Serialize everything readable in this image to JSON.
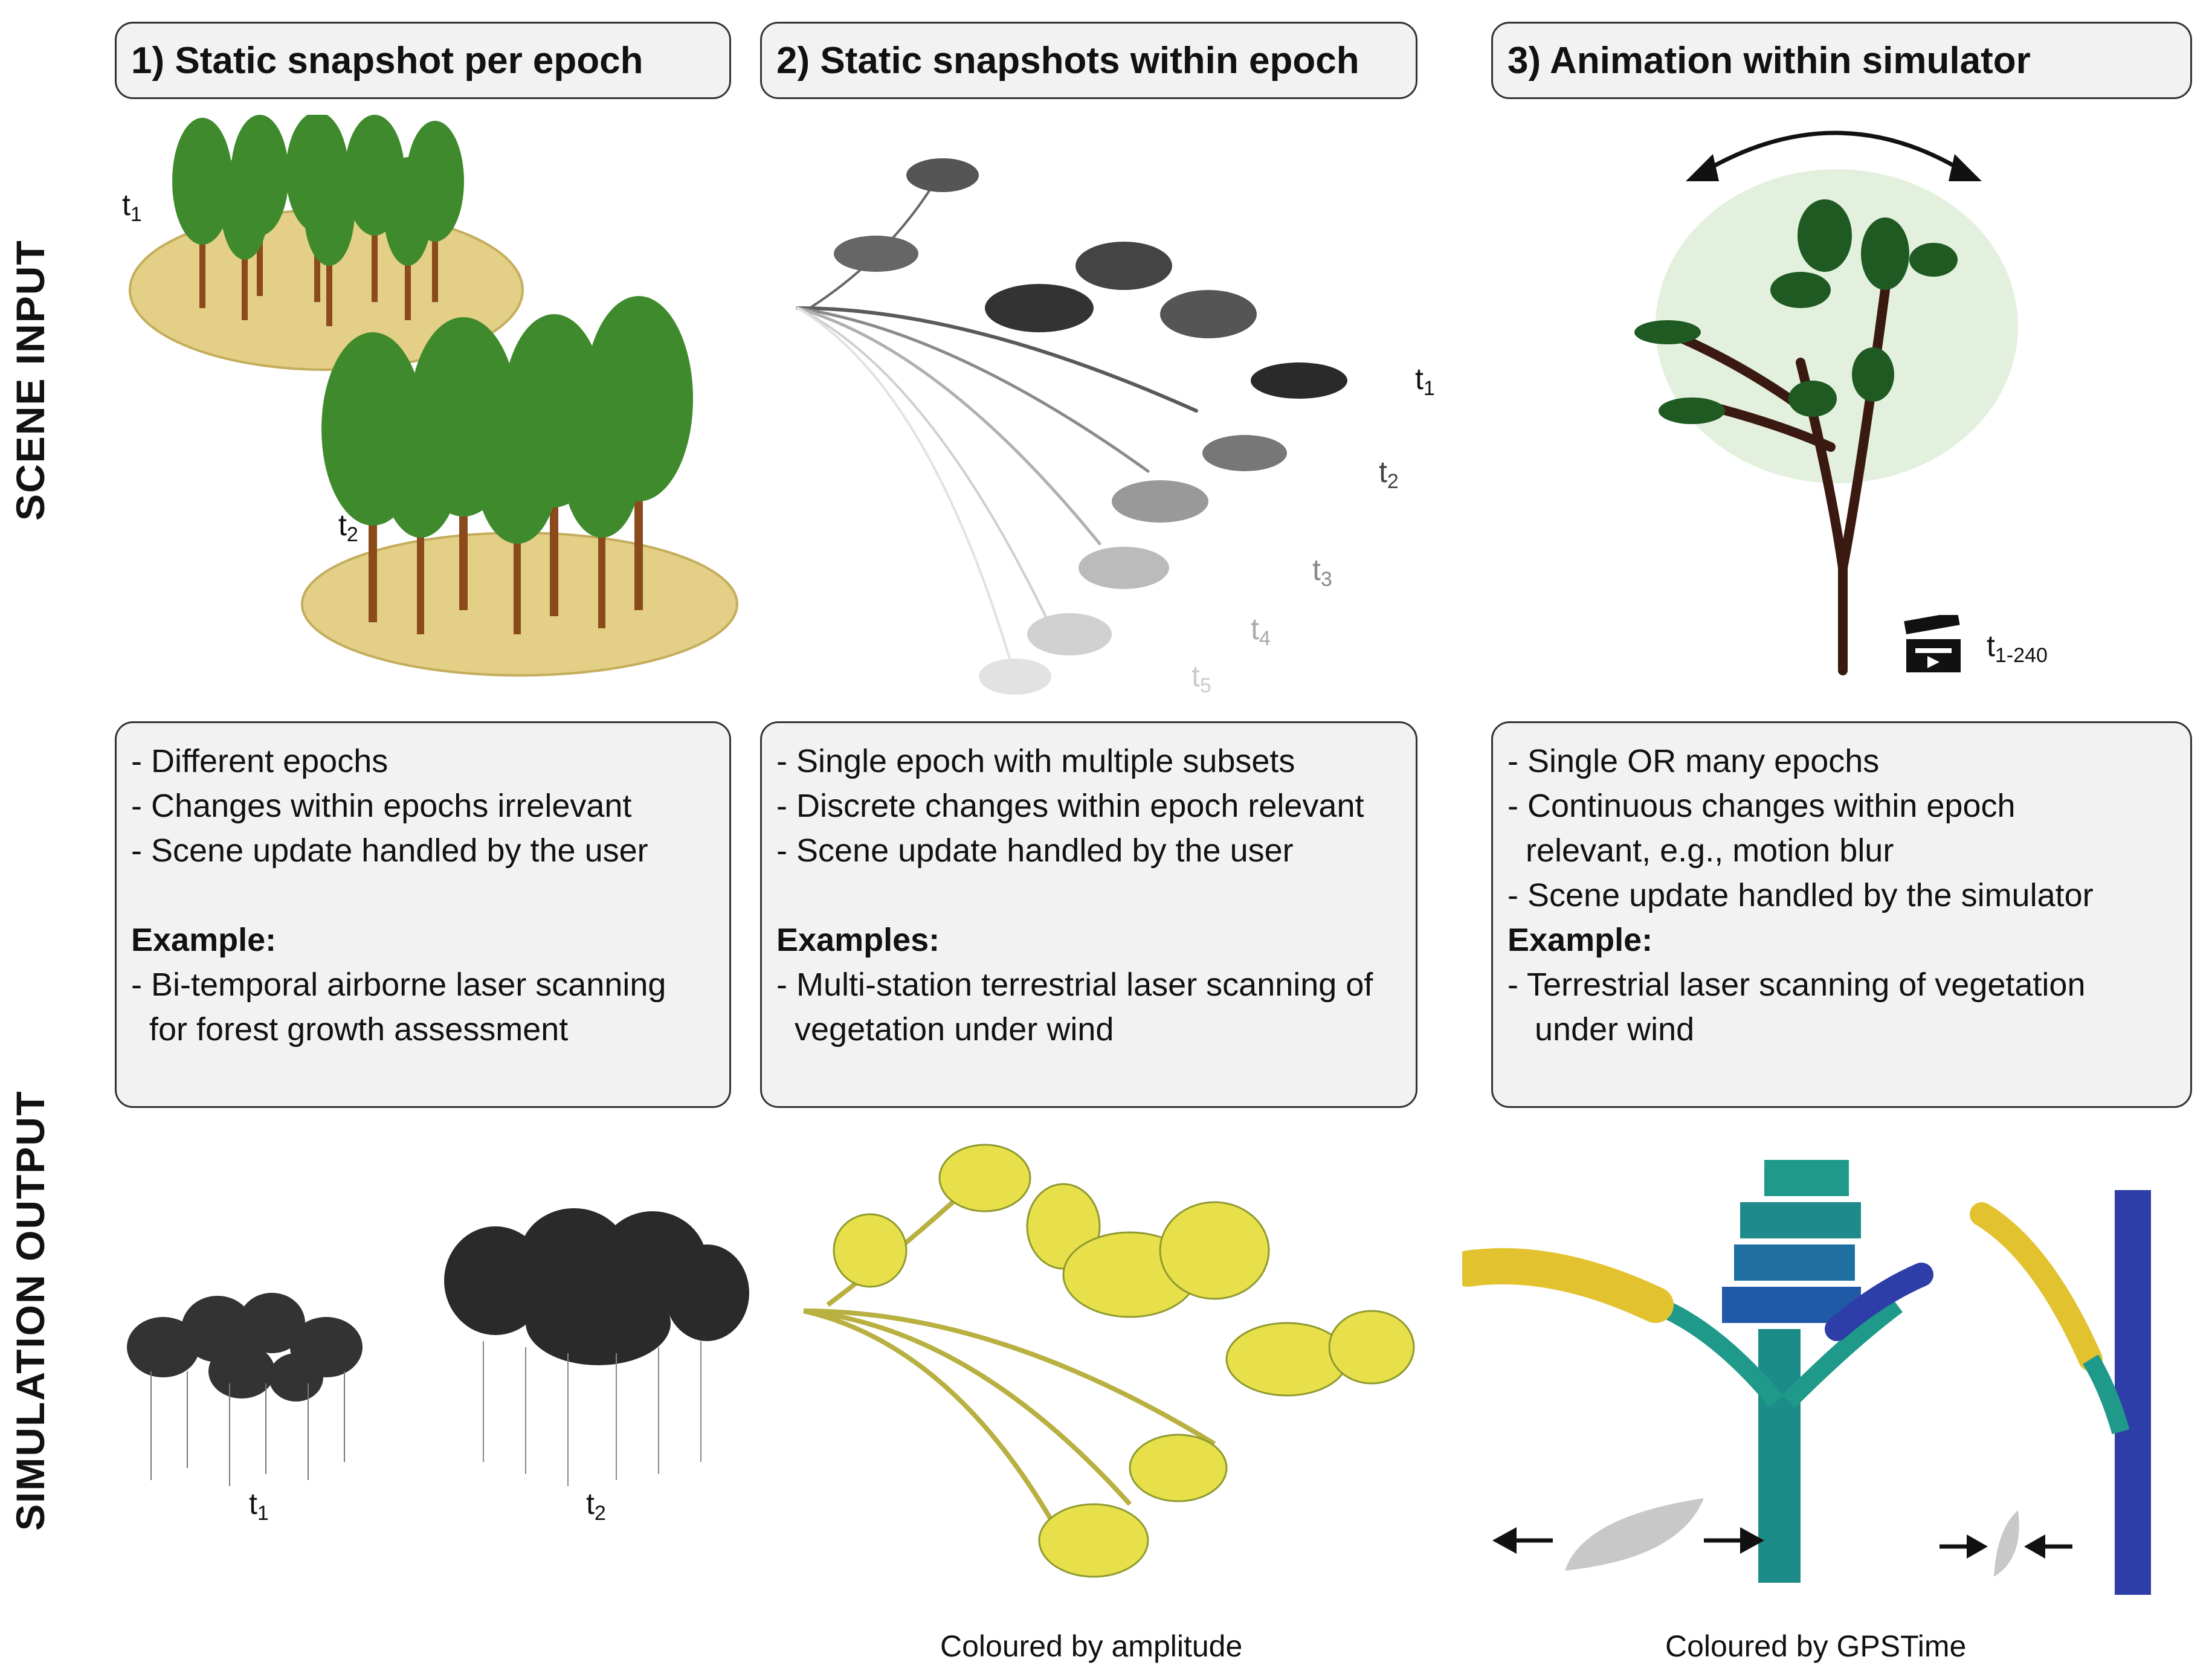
{
  "row_labels": {
    "scene_input": "SCENE INPUT",
    "simulation_output": "SIMULATION OUTPUT"
  },
  "columns": [
    {
      "header": "1) Static snapshot per epoch",
      "bullets": [
        "- Different epochs",
        "- Changes within epochs irrelevant",
        "- Scene update handled by the user"
      ],
      "example_heading": "Example:",
      "example_lines": [
        "- Bi-temporal airborne laser scanning",
        "  for forest growth assessment"
      ]
    },
    {
      "header": "2) Static snapshots within epoch",
      "bullets": [
        "- Single epoch with multiple subsets",
        "- Discrete changes within epoch relevant",
        "- Scene update handled by the user"
      ],
      "example_heading": "Examples:",
      "example_lines": [
        "- Multi-station terrestrial laser scanning of",
        "  vegetation under wind"
      ]
    },
    {
      "header": "3) Animation within simulator",
      "bullets": [
        "- Single OR many epochs",
        "- Continuous changes within epoch",
        "  relevant, e.g., motion blur",
        "- Scene update handled by the simulator"
      ],
      "example_heading": "Example:",
      "example_lines": [
        "- Terrestrial laser scanning of vegetation",
        "   under wind"
      ]
    }
  ],
  "time_labels": {
    "t1_base": "t",
    "t1_sub": "1",
    "t2_base": "t",
    "t2_sub": "2",
    "t3_base": "t",
    "t3_sub": "3",
    "t4_base": "t",
    "t4_sub": "4",
    "t5_base": "t",
    "t5_sub": "5",
    "t_anim_base": "t",
    "t_anim_sub": "1-240"
  },
  "captions": {
    "amplitude": "Coloured by amplitude",
    "gpstime": "Coloured by GPSTime"
  },
  "colors": {
    "box_fill": "#f2f2f2",
    "box_border": "#333333",
    "ground": "#e3cf86",
    "trunk": "#8a4a1c",
    "foliage": "#3f8a2c",
    "amplitude_yellow": "#e8e04a",
    "gpstime_teal": "#1f9a8a",
    "gpstime_blue": "#2d3ea8",
    "leaf_grey": "#c8c8c8"
  },
  "icons": [
    "double-arrow-icon",
    "clapperboard-icon",
    "leaf-icon",
    "arrow-right-icon",
    "arrow-left-icon"
  ]
}
